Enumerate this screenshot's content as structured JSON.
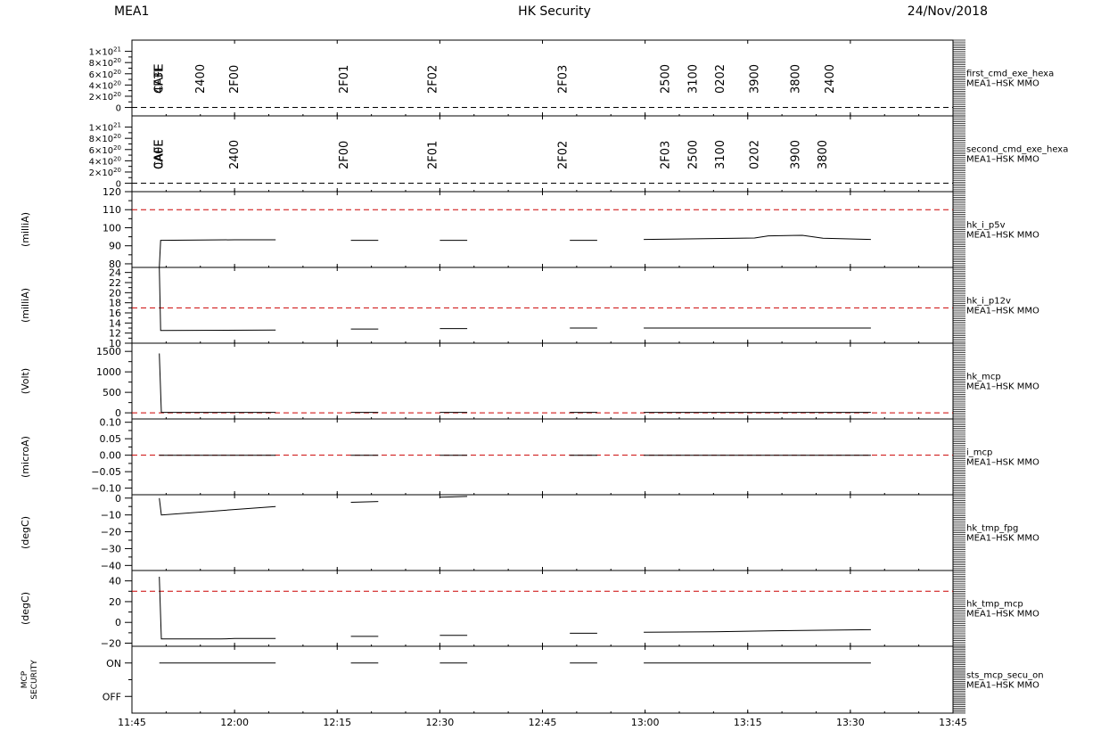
{
  "header": {
    "left": "MEA1",
    "center": "HK Security",
    "right": "24/Nov/2018"
  },
  "chart_data": {
    "type": "line",
    "x_tick_labels": [
      "11:45",
      "12:00",
      "12:15",
      "12:30",
      "12:45",
      "13:00",
      "13:15",
      "13:30",
      "13:45"
    ],
    "x_range": [
      "11:45",
      "13:45"
    ],
    "panels": [
      {
        "id": "first_cmd_exe_hexa",
        "right_label_1": "first_cmd_exe_hexa",
        "right_label_2": "MEA1–HSK MMO",
        "ylabel": "",
        "ylim": [
          -1.5e+20,
          1.2e+21
        ],
        "ytick_values": [
          1e+21,
          8e+20,
          6e+20,
          4e+20,
          2e+20,
          0
        ],
        "ytick_labels": [
          {
            "m": "1×10",
            "e": "21"
          },
          {
            "m": "8×10",
            "e": "20"
          },
          {
            "m": "6×10",
            "e": "20"
          },
          {
            "m": "4×10",
            "e": "20"
          },
          {
            "m": "2×10",
            "e": "20"
          },
          {
            "m": "0",
            "e": ""
          }
        ],
        "ref_lines": [
          {
            "value": 0,
            "color": "#000000"
          }
        ],
        "events": [
          {
            "t": "11:49",
            "label": "CAFE"
          },
          {
            "t": "11:49",
            "label": "4F3E"
          },
          {
            "t": "11:55",
            "label": "2400"
          },
          {
            "t": "12:00",
            "label": "2F00"
          },
          {
            "t": "12:16",
            "label": "2F01"
          },
          {
            "t": "12:29",
            "label": "2F02"
          },
          {
            "t": "12:48",
            "label": "2F03"
          },
          {
            "t": "13:03",
            "label": "2500"
          },
          {
            "t": "13:07",
            "label": "3100"
          },
          {
            "t": "13:11",
            "label": "0202"
          },
          {
            "t": "13:16",
            "label": "3900"
          },
          {
            "t": "13:22",
            "label": "3800"
          },
          {
            "t": "13:27",
            "label": "2400"
          }
        ]
      },
      {
        "id": "second_cmd_exe_hexa",
        "right_label_1": "second_cmd_exe_hexa",
        "right_label_2": "MEA1–HSK MMO",
        "ylabel": "",
        "ylim": [
          -1.5e+20,
          1.2e+21
        ],
        "ytick_values": [
          1e+21,
          8e+20,
          6e+20,
          4e+20,
          2e+20,
          0
        ],
        "ytick_labels": [
          {
            "m": "1×10",
            "e": "21"
          },
          {
            "m": "8×10",
            "e": "20"
          },
          {
            "m": "6×10",
            "e": "20"
          },
          {
            "m": "4×10",
            "e": "20"
          },
          {
            "m": "2×10",
            "e": "20"
          },
          {
            "m": "0",
            "e": ""
          }
        ],
        "ref_lines": [
          {
            "value": 0,
            "color": "#000000"
          }
        ],
        "events": [
          {
            "t": "11:49",
            "label": "CAFE"
          },
          {
            "t": "11:49",
            "label": "0A0E"
          },
          {
            "t": "12:00",
            "label": "2400"
          },
          {
            "t": "12:16",
            "label": "2F00"
          },
          {
            "t": "12:29",
            "label": "2F01"
          },
          {
            "t": "12:48",
            "label": "2F02"
          },
          {
            "t": "13:03",
            "label": "2F03"
          },
          {
            "t": "13:07",
            "label": "2500"
          },
          {
            "t": "13:11",
            "label": "3100"
          },
          {
            "t": "13:16",
            "label": "0202"
          },
          {
            "t": "13:22",
            "label": "3900"
          },
          {
            "t": "13:26",
            "label": "3800"
          }
        ]
      },
      {
        "id": "hk_i_p5v",
        "right_label_1": "hk_i_p5v",
        "right_label_2": "MEA1–HSK MMO",
        "ylabel": "(milliA)",
        "ylim": [
          78,
          120
        ],
        "ytick_values": [
          120,
          110,
          100,
          90,
          80
        ],
        "ytick_labels": [
          "120",
          "110",
          "100",
          "90",
          "80"
        ],
        "ref_lines": [
          {
            "value": 110,
            "color": "#cc0000"
          }
        ],
        "series": [
          {
            "segments": [
              [
                [
                  "11:49",
                  78
                ],
                [
                  "11:49.2",
                  93
                ],
                [
                  "12:00",
                  93.3
                ],
                [
                  "12:06",
                  93.3
                ]
              ],
              [
                [
                  "12:17",
                  93
                ],
                [
                  "12:21",
                  93
                ]
              ],
              [
                [
                  "12:30",
                  93
                ],
                [
                  "12:34",
                  93
                ]
              ],
              [
                [
                  "12:49",
                  93
                ],
                [
                  "12:53",
                  93
                ]
              ],
              [
                [
                  "12:59.8",
                  93.5
                ],
                [
                  "13:10",
                  94
                ],
                [
                  "13:16",
                  94.3
                ],
                [
                  "13:18",
                  95.5
                ],
                [
                  "13:23",
                  95.8
                ],
                [
                  "13:26",
                  94.2
                ],
                [
                  "13:33",
                  93.5
                ]
              ]
            ]
          }
        ]
      },
      {
        "id": "hk_i_p12v",
        "right_label_1": "hk_i_p12v",
        "right_label_2": "MEA1–HSK MMO",
        "ylabel": "(milliA)",
        "ylim": [
          10,
          25
        ],
        "ytick_values": [
          24,
          22,
          20,
          18,
          16,
          14,
          12,
          10
        ],
        "ytick_labels": [
          "24",
          "22",
          "20",
          "18",
          "16",
          "14",
          "12",
          "10"
        ],
        "ref_lines": [
          {
            "value": 17,
            "color": "#cc0000"
          }
        ],
        "series": [
          {
            "segments": [
              [
                [
                  "11:49",
                  25
                ],
                [
                  "11:49.2",
                  12.5
                ],
                [
                  "12:06",
                  12.6
                ]
              ],
              [
                [
                  "12:17",
                  12.8
                ],
                [
                  "12:21",
                  12.8
                ]
              ],
              [
                [
                  "12:30",
                  12.9
                ],
                [
                  "12:34",
                  12.9
                ]
              ],
              [
                [
                  "12:49",
                  13
                ],
                [
                  "12:53",
                  13
                ]
              ],
              [
                [
                  "12:59.8",
                  13
                ],
                [
                  "13:33",
                  13
                ]
              ]
            ]
          }
        ]
      },
      {
        "id": "hk_mcp",
        "right_label_1": "hk_mcp",
        "right_label_2": "MEA1–HSK MMO",
        "ylabel": "(Volt)",
        "ylim": [
          -150,
          1700
        ],
        "ytick_values": [
          1500,
          1000,
          500,
          0
        ],
        "ytick_labels": [
          "1500",
          "1000",
          "500",
          "0"
        ],
        "ref_lines": [
          {
            "value": 0,
            "color": "#cc0000"
          }
        ],
        "series": [
          {
            "segments": [
              [
                [
                  "11:49",
                  1450
                ],
                [
                  "11:49.3",
                  10
                ],
                [
                  "12:06",
                  10
                ]
              ],
              [
                [
                  "12:17",
                  10
                ],
                [
                  "12:21",
                  10
                ]
              ],
              [
                [
                  "12:30",
                  10
                ],
                [
                  "12:34",
                  10
                ]
              ],
              [
                [
                  "12:49",
                  10
                ],
                [
                  "12:53",
                  10
                ]
              ],
              [
                [
                  "12:59.8",
                  10
                ],
                [
                  "13:33",
                  10
                ]
              ]
            ]
          }
        ]
      },
      {
        "id": "i_mcp",
        "right_label_1": "i_mcp",
        "right_label_2": "MEA1–HSK MMO",
        "ylabel": "(microA)",
        "ylim": [
          -0.12,
          0.11
        ],
        "ytick_values": [
          0.1,
          0.05,
          0.0,
          -0.05,
          -0.1
        ],
        "ytick_labels": [
          "0.10",
          "0.05",
          "0.00",
          "−0.05",
          "−0.10"
        ],
        "ref_lines": [
          {
            "value": 0,
            "color": "#cc0000"
          }
        ],
        "series": [
          {
            "segments": [
              [
                [
                  "11:49",
                  0
                ],
                [
                  "12:06",
                  0
                ]
              ],
              [
                [
                  "12:17",
                  0
                ],
                [
                  "12:21",
                  0
                ]
              ],
              [
                [
                  "12:30",
                  0
                ],
                [
                  "12:34",
                  0
                ]
              ],
              [
                [
                  "12:49",
                  0
                ],
                [
                  "12:53",
                  0
                ]
              ],
              [
                [
                  "12:59.8",
                  0
                ],
                [
                  "13:33",
                  0
                ]
              ]
            ]
          }
        ]
      },
      {
        "id": "hk_tmp_fpg",
        "right_label_1": "hk_tmp_fpg",
        "right_label_2": "MEA1–HSK MMO",
        "ylabel": "(degC)",
        "ylim": [
          -43,
          2
        ],
        "ytick_values": [
          0,
          -10,
          -20,
          -30,
          -40
        ],
        "ytick_labels": [
          "0",
          "−10",
          "−20",
          "−30",
          "−40"
        ],
        "ref_lines": [],
        "series": [
          {
            "segments": [
              [
                [
                  "11:49",
                  0
                ],
                [
                  "11:49.3",
                  -10
                ],
                [
                  "12:06",
                  -5
                ]
              ],
              [
                [
                  "12:17",
                  -2.5
                ],
                [
                  "12:21",
                  -2
                ]
              ],
              [
                [
                  "12:30",
                  0.5
                ],
                [
                  "12:34",
                  1
                ]
              ]
            ]
          }
        ]
      },
      {
        "id": "hk_tmp_mcp",
        "right_label_1": "hk_tmp_mcp",
        "right_label_2": "MEA1–HSK MMO",
        "ylabel": "(degC)",
        "ylim": [
          -23,
          50
        ],
        "ytick_values": [
          40,
          20,
          0,
          -20
        ],
        "ytick_labels": [
          "40",
          "20",
          "0",
          "−20"
        ],
        "ref_lines": [
          {
            "value": 30,
            "color": "#cc0000"
          }
        ],
        "series": [
          {
            "segments": [
              [
                [
                  "11:49",
                  44
                ],
                [
                  "11:49.3",
                  -16
                ],
                [
                  "11:58",
                  -16
                ],
                [
                  "12:00",
                  -15.5
                ],
                [
                  "12:06",
                  -15.5
                ]
              ],
              [
                [
                  "12:17",
                  -13.5
                ],
                [
                  "12:21",
                  -13.5
                ]
              ],
              [
                [
                  "12:30",
                  -12.5
                ],
                [
                  "12:34",
                  -12.5
                ]
              ],
              [
                [
                  "12:49",
                  -10.5
                ],
                [
                  "12:53",
                  -10.5
                ]
              ],
              [
                [
                  "12:59.8",
                  -9.5
                ],
                [
                  "13:10",
                  -9
                ],
                [
                  "13:20",
                  -8
                ],
                [
                  "13:33",
                  -7
                ]
              ]
            ]
          }
        ]
      },
      {
        "id": "sts_mcp_secu_on",
        "right_label_1": "sts_mcp_secu_on",
        "right_label_2": "MEA1–HSK MMO",
        "ylabel_lines": [
          "MCP",
          "SECURITY"
        ],
        "ylim": [
          -0.5,
          1.5
        ],
        "ytick_values": [
          1,
          0
        ],
        "ytick_labels": [
          "ON",
          "OFF"
        ],
        "ref_lines": [],
        "series": [
          {
            "segments": [
              [
                [
                  "11:49",
                  1
                ],
                [
                  "12:06",
                  1
                ]
              ],
              [
                [
                  "12:17",
                  1
                ],
                [
                  "12:21",
                  1
                ]
              ],
              [
                [
                  "12:30",
                  1
                ],
                [
                  "12:34",
                  1
                ]
              ],
              [
                [
                  "12:49",
                  1
                ],
                [
                  "12:53",
                  1
                ]
              ],
              [
                [
                  "12:59.8",
                  1
                ],
                [
                  "13:33",
                  1
                ]
              ]
            ]
          }
        ]
      }
    ]
  }
}
